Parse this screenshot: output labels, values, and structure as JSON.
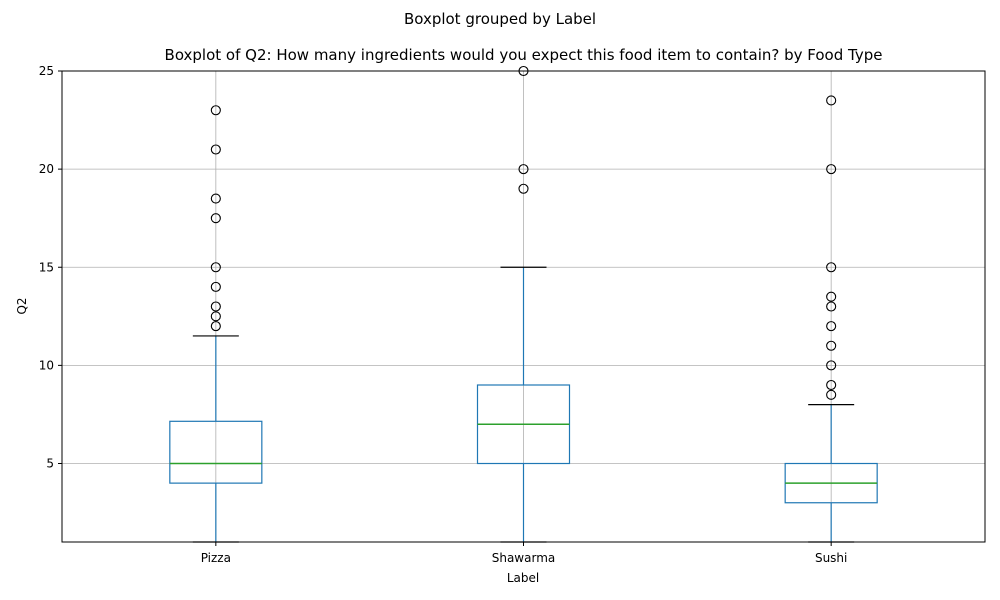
{
  "suptitle": "Boxplot grouped by Label",
  "chart_data": {
    "type": "box",
    "title": "Boxplot of Q2: How many ingredients would you expect this food item to contain? by Food Type",
    "xlabel": "Label",
    "ylabel": "Q2",
    "ylim": [
      1,
      25
    ],
    "yticks": [
      5,
      10,
      15,
      20,
      25
    ],
    "grid": true,
    "categories": [
      "Pizza",
      "Shawarma",
      "Sushi"
    ],
    "boxes": [
      {
        "label": "Pizza",
        "whisker_low": 1,
        "q1": 4,
        "median": 5,
        "q3": 7.15,
        "whisker_high": 11.5,
        "outliers": [
          12,
          12.5,
          13,
          14,
          15,
          17.5,
          18.5,
          21,
          23
        ]
      },
      {
        "label": "Shawarma",
        "whisker_low": 1,
        "q1": 5,
        "median": 7,
        "q3": 9,
        "whisker_high": 15,
        "outliers": [
          19,
          20,
          25
        ]
      },
      {
        "label": "Sushi",
        "whisker_low": 1,
        "q1": 3,
        "median": 4,
        "q3": 5,
        "whisker_high": 8,
        "outliers": [
          8.5,
          9,
          10,
          11,
          12,
          13,
          13.5,
          15,
          20,
          23.5
        ]
      }
    ],
    "colors": {
      "box": "#1f77b4",
      "median": "#2ca02c",
      "cap": "#000000",
      "grid": "#b0b0b0",
      "outlier": "#000000"
    }
  }
}
